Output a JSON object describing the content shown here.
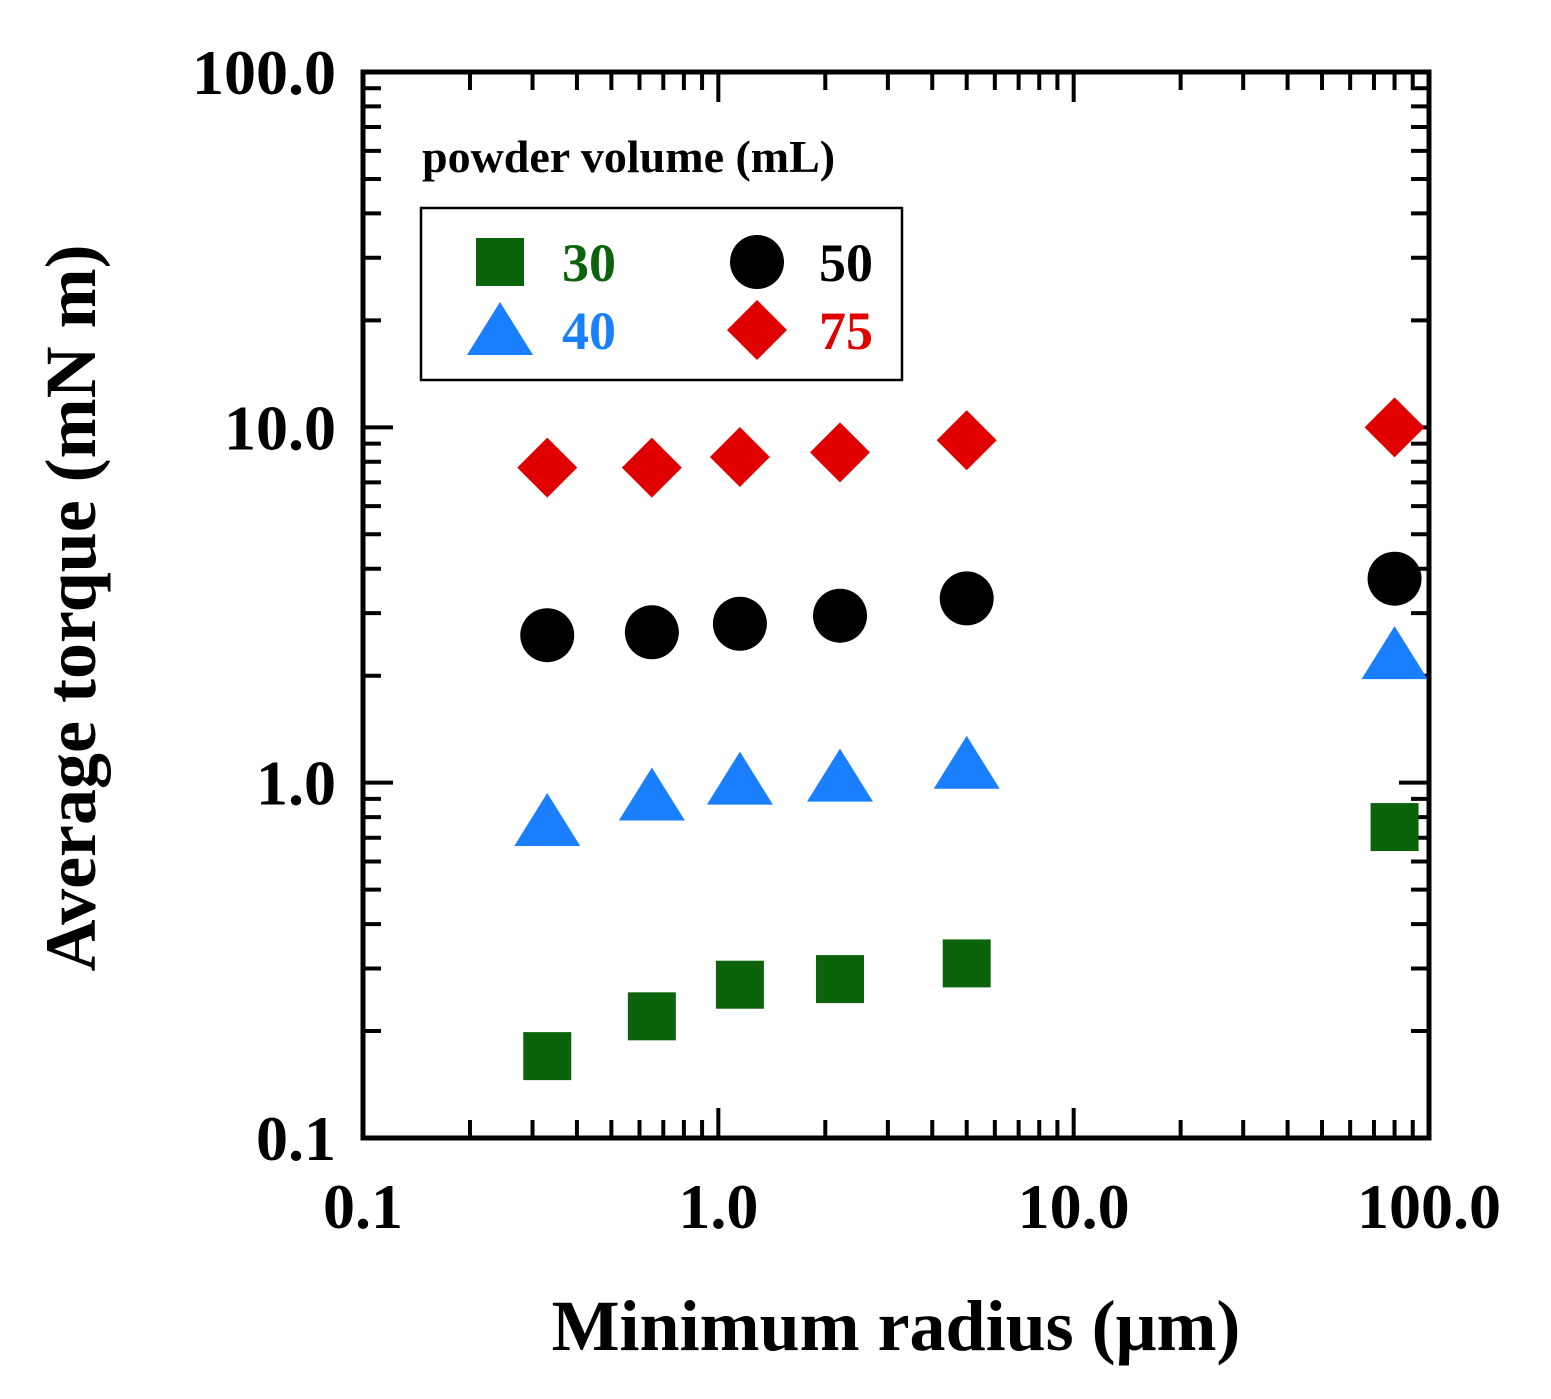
{
  "chart_data": {
    "type": "scatter",
    "title": "",
    "xlabel": "Minimum radius  (μm)",
    "ylabel": "Average torque  (mN m)",
    "xscale": "log",
    "yscale": "log",
    "xlim": [
      0.1,
      100.0
    ],
    "ylim": [
      0.1,
      100.0
    ],
    "xticks": [
      0.1,
      1.0,
      10.0,
      100.0
    ],
    "xtick_labels": [
      "0.1",
      "1.0",
      "10.0",
      "100.0"
    ],
    "yticks": [
      0.1,
      1.0,
      10.0,
      100.0
    ],
    "ytick_labels": [
      "0.1",
      "1.0",
      "10.0",
      "100.0"
    ],
    "legend": {
      "title": "powder volume (mL)",
      "placement": "top-left"
    },
    "series": [
      {
        "name": "30",
        "marker": "square",
        "color": "#0b640b",
        "x": [
          0.33,
          0.65,
          1.15,
          2.2,
          5.0,
          80.0
        ],
        "y": [
          0.17,
          0.22,
          0.27,
          0.28,
          0.31,
          0.75
        ]
      },
      {
        "name": "40",
        "marker": "triangle",
        "color": "#1a7fff",
        "x": [
          0.33,
          0.65,
          1.15,
          2.2,
          5.0,
          80.0
        ],
        "y": [
          0.78,
          0.92,
          1.02,
          1.04,
          1.13,
          2.3
        ]
      },
      {
        "name": "50",
        "marker": "circle",
        "color": "#000000",
        "x": [
          0.33,
          0.65,
          1.15,
          2.2,
          5.0,
          80.0
        ],
        "y": [
          2.6,
          2.65,
          2.8,
          2.95,
          3.3,
          3.75
        ]
      },
      {
        "name": "75",
        "marker": "diamond",
        "color": "#e00000",
        "x": [
          0.33,
          0.65,
          1.15,
          2.2,
          5.0,
          80.0
        ],
        "y": [
          7.7,
          7.7,
          8.25,
          8.5,
          9.2,
          10.0
        ]
      }
    ]
  }
}
